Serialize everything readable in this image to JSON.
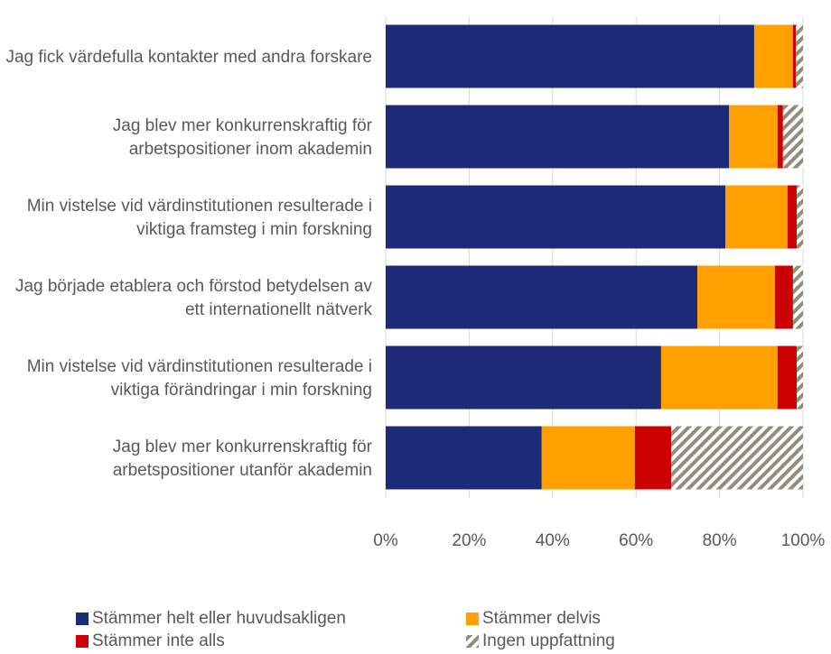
{
  "chart_data": {
    "type": "stacked-barh",
    "categories": [
      "Jag fick värdefulla kontakter med andra forskare",
      "Jag blev mer konkurrenskraftig för arbetspositioner inom akademin",
      "Min vistelse vid värdinstitutionen resulterade i viktiga framsteg i min forskning",
      "Jag började etablera och förstod betydelsen av ett internationellt nätverk",
      "Min vistelse vid värdinstitutionen resulterade i viktiga förändringar i min forskning",
      "Jag blev mer konkurrenskraftig för arbetspositioner utanför akademin"
    ],
    "series": [
      {
        "name": "Stämmer helt eller huvudsakligen",
        "color": "#1c2a78",
        "values": [
          88.3,
          82.3,
          81.4,
          74.7,
          66.0,
          37.4
        ]
      },
      {
        "name": "Stämmer delvis",
        "color": "#ffa000",
        "values": [
          9.3,
          11.6,
          14.9,
          18.6,
          27.9,
          22.3
        ]
      },
      {
        "name": "Stämmer inte alls",
        "color": "#cc0000",
        "values": [
          0.7,
          1.3,
          2.2,
          4.3,
          4.6,
          8.7
        ]
      },
      {
        "name": "Ingen uppfattning",
        "color": "#958b7b",
        "hatch": true,
        "values": [
          1.7,
          4.8,
          1.5,
          2.4,
          1.5,
          31.6
        ]
      }
    ],
    "xlim": [
      0,
      100
    ],
    "xticks": [
      {
        "value": 0,
        "label": "0%"
      },
      {
        "value": 20,
        "label": "20%"
      },
      {
        "value": 40,
        "label": "40%"
      },
      {
        "value": 60,
        "label": "60%"
      },
      {
        "value": 80,
        "label": "80%"
      },
      {
        "value": 100,
        "label": "100%"
      }
    ],
    "grid": true
  }
}
